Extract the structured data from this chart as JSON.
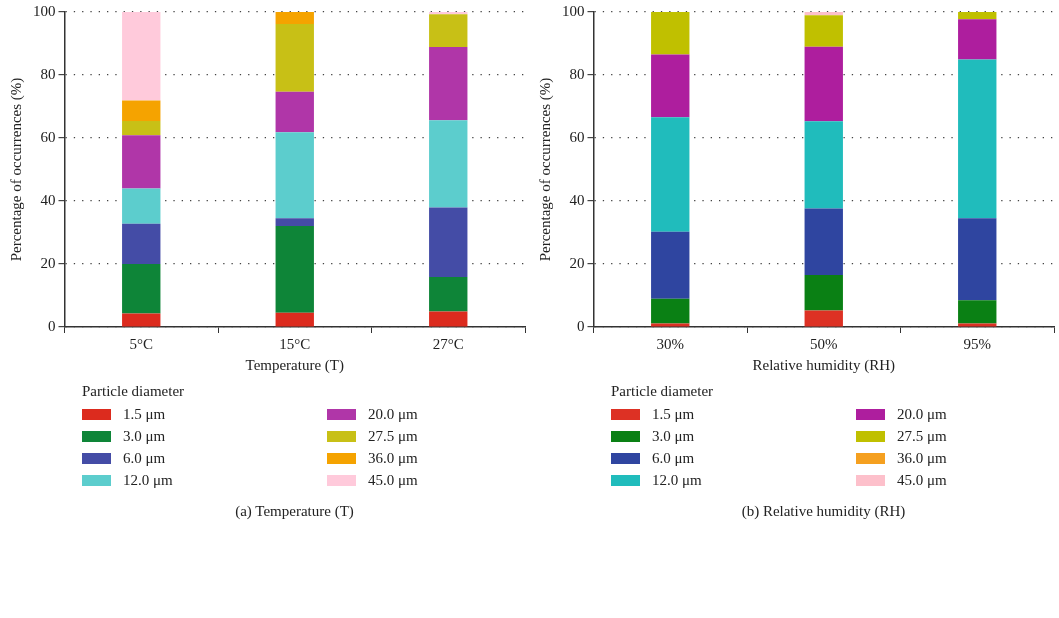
{
  "chart_data": [
    {
      "type": "bar",
      "stacked": true,
      "xlabel": "Temperature (T)",
      "ylabel": "Percentage of occurrences (%)",
      "legend_title": "Particle diameter",
      "legend": "bottom",
      "grid": "y",
      "categories": [
        "5°C",
        "15°C",
        "27°C"
      ],
      "ylim": [
        0,
        100
      ],
      "yticks": [
        0,
        20,
        40,
        60,
        80,
        100
      ],
      "annotations": [
        "(a) Temperature (T)"
      ],
      "series": [
        {
          "name": "1.5 μm",
          "color": "#dc2b1e",
          "values": [
            4.3,
            4.5,
            4.9
          ]
        },
        {
          "name": "3.0 μm",
          "color": "#0e8538",
          "values": [
            15.7,
            27.6,
            11.0
          ]
        },
        {
          "name": "6.0 μm",
          "color": "#444ca6",
          "values": [
            12.8,
            2.4,
            22.0
          ]
        },
        {
          "name": "12.0 μm",
          "color": "#5ccdcd",
          "values": [
            11.2,
            27.3,
            27.7
          ]
        },
        {
          "name": "20.0 μm",
          "color": "#b036a8",
          "values": [
            16.9,
            12.9,
            23.3
          ]
        },
        {
          "name": "27.5 μm",
          "color": "#c8c016",
          "values": [
            4.5,
            21.5,
            10.4
          ]
        },
        {
          "name": "36.0 μm",
          "color": "#f5a300",
          "values": [
            6.5,
            3.8,
            0
          ]
        },
        {
          "name": "45.0 μm",
          "color": "#ffcadb",
          "values": [
            28.1,
            0,
            0.7
          ]
        }
      ]
    },
    {
      "type": "bar",
      "stacked": true,
      "xlabel": "Relative humidity (RH)",
      "ylabel": "Percentage of occurrences (%)",
      "legend_title": "Particle diameter",
      "legend": "bottom",
      "grid": "y",
      "categories": [
        "30%",
        "50%",
        "95%"
      ],
      "ylim": [
        0,
        100
      ],
      "yticks": [
        0,
        20,
        40,
        60,
        80,
        100
      ],
      "annotations": [
        "(b) Relative humidity (RH)"
      ],
      "series": [
        {
          "name": "1.5 μm",
          "color": "#dd3124",
          "values": [
            1.1,
            5.2,
            1.1
          ]
        },
        {
          "name": "3.0 μm",
          "color": "#0a8014",
          "values": [
            7.9,
            11.3,
            7.4
          ]
        },
        {
          "name": "6.0 μm",
          "color": "#2f45a0",
          "values": [
            21.2,
            21.1,
            26.0
          ]
        },
        {
          "name": "12.0 μm",
          "color": "#20bcbc",
          "values": [
            36.4,
            27.7,
            50.4
          ]
        },
        {
          "name": "20.0 μm",
          "color": "#ae1e9e",
          "values": [
            19.9,
            23.7,
            12.8
          ]
        },
        {
          "name": "27.5 μm",
          "color": "#c0c000",
          "values": [
            13.5,
            10.0,
            2.3
          ]
        },
        {
          "name": "36.0 μm",
          "color": "#f5a020",
          "values": [
            0,
            0,
            0
          ]
        },
        {
          "name": "45.0 μm",
          "color": "#fdc0cb",
          "values": [
            0,
            1.0,
            0
          ]
        }
      ]
    }
  ]
}
